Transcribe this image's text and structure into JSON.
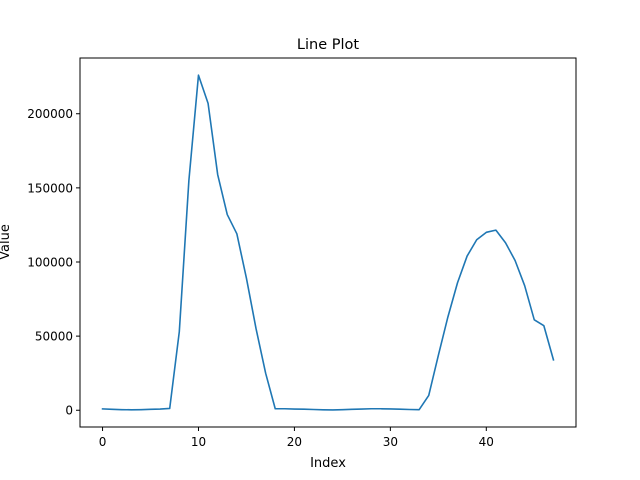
{
  "chart_data": {
    "type": "line",
    "title": "Line Plot",
    "xlabel": "Index",
    "ylabel": "Value",
    "xlim": [
      -2.35,
      49.35
    ],
    "ylim": [
      -11300,
      237600
    ],
    "xticks": [
      0,
      10,
      20,
      30,
      40
    ],
    "yticks": [
      0,
      50000,
      100000,
      150000,
      200000
    ],
    "grid": false,
    "legend": "none",
    "series": [
      {
        "color": "#1f77b4",
        "x": [
          0,
          1,
          2,
          3,
          4,
          5,
          6,
          7,
          8,
          9,
          10,
          11,
          12,
          13,
          14,
          15,
          16,
          17,
          18,
          19,
          20,
          21,
          22,
          23,
          24,
          25,
          26,
          27,
          28,
          29,
          30,
          31,
          32,
          33,
          34,
          35,
          36,
          37,
          38,
          39,
          40,
          41,
          42,
          43,
          44,
          45,
          46,
          47
        ],
        "values": [
          900,
          600,
          400,
          300,
          400,
          600,
          800,
          1200,
          53000,
          155000,
          226000,
          207000,
          159000,
          132000,
          119000,
          89000,
          55000,
          25000,
          1000,
          1000,
          800,
          700,
          500,
          300,
          200,
          400,
          600,
          800,
          1000,
          1000,
          900,
          700,
          500,
          400,
          10000,
          37000,
          63000,
          86000,
          104000,
          115000,
          120000,
          121500,
          113000,
          101000,
          84000,
          61000,
          57000,
          34000
        ]
      }
    ]
  }
}
